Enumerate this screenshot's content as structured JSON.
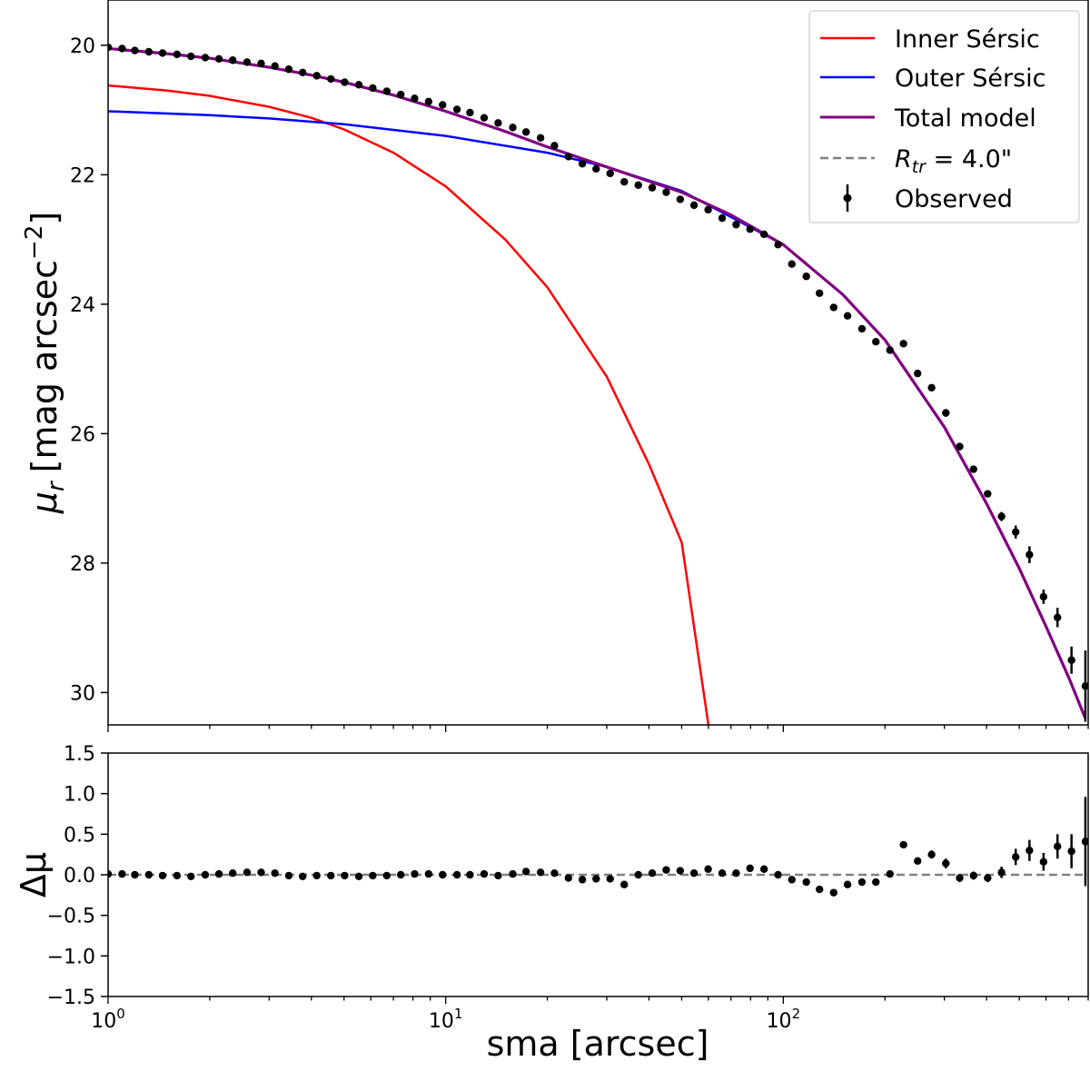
{
  "chart_data": [
    {
      "type": "line",
      "panel": "top",
      "ylabel_symbol": "μ",
      "ylabel_sub": "r",
      "ylabel_text": "[mag arcsec",
      "ylabel_exp": "−2",
      "ylabel_close": "]",
      "x_scale": "log",
      "xlim": [
        1,
        800
      ],
      "ylim": [
        30.5,
        19.3
      ],
      "y_inverted": true,
      "yticks": [
        20,
        22,
        24,
        26,
        28,
        30
      ],
      "ytick_labels": [
        "20",
        "22",
        "24",
        "26",
        "28",
        "30"
      ],
      "grid": false,
      "legend_position": "top-right",
      "legend": [
        {
          "label": "Inner Sérsic",
          "color": "#ff0000",
          "style": "solid"
        },
        {
          "label": "Outer Sérsic",
          "color": "#0000ff",
          "style": "solid"
        },
        {
          "label": "Total model",
          "color": "#800080",
          "style": "solid"
        },
        {
          "label_math": "R",
          "label_sub": "tr",
          "label_rest": " = 4.0\"",
          "color": "#808080",
          "style": "dashed"
        },
        {
          "label": "Observed",
          "color": "#000000",
          "style": "errorbar"
        }
      ],
      "observed": {
        "x": [
          1.0,
          1.1,
          1.2,
          1.32,
          1.45,
          1.6,
          1.76,
          1.94,
          2.13,
          2.34,
          2.58,
          2.84,
          3.12,
          3.43,
          3.77,
          4.15,
          4.57,
          5.02,
          5.53,
          6.08,
          6.69,
          7.36,
          8.09,
          8.9,
          9.79,
          10.8,
          11.8,
          13.0,
          14.3,
          15.8,
          17.3,
          19.1,
          21.0,
          23.1,
          25.4,
          27.9,
          30.7,
          33.8,
          37.2,
          40.9,
          45.0,
          49.5,
          54.4,
          59.9,
          65.9,
          72.5,
          79.7,
          87.7,
          96.5,
          106,
          117,
          128,
          141,
          155,
          171,
          188,
          207,
          227,
          250,
          275,
          303,
          333,
          366,
          403,
          443,
          488,
          536,
          590,
          649,
          714,
          785
        ],
        "y": [
          20.03,
          20.05,
          20.08,
          20.1,
          20.12,
          20.14,
          20.17,
          20.19,
          20.21,
          20.23,
          20.26,
          20.28,
          20.32,
          20.37,
          20.42,
          20.47,
          20.52,
          20.57,
          20.61,
          20.66,
          20.71,
          20.76,
          20.82,
          20.87,
          20.92,
          20.99,
          21.04,
          21.12,
          21.2,
          21.27,
          21.34,
          21.43,
          21.55,
          21.72,
          21.83,
          21.91,
          21.98,
          22.11,
          22.16,
          22.2,
          22.27,
          22.38,
          22.47,
          22.54,
          22.67,
          22.77,
          22.84,
          22.92,
          23.08,
          23.38,
          23.57,
          23.83,
          24.05,
          24.18,
          24.38,
          24.58,
          24.71,
          24.61,
          25.07,
          25.29,
          25.68,
          26.2,
          26.55,
          26.93,
          27.28,
          27.52,
          27.87,
          28.52,
          28.84,
          29.5,
          29.9
        ],
        "yerr": [
          0.02,
          0.02,
          0.02,
          0.02,
          0.02,
          0.02,
          0.02,
          0.02,
          0.02,
          0.02,
          0.02,
          0.02,
          0.02,
          0.02,
          0.02,
          0.02,
          0.02,
          0.02,
          0.02,
          0.02,
          0.02,
          0.02,
          0.02,
          0.02,
          0.02,
          0.02,
          0.02,
          0.02,
          0.02,
          0.02,
          0.02,
          0.02,
          0.02,
          0.02,
          0.02,
          0.02,
          0.02,
          0.02,
          0.02,
          0.02,
          0.02,
          0.02,
          0.02,
          0.02,
          0.02,
          0.02,
          0.02,
          0.02,
          0.02,
          0.02,
          0.02,
          0.02,
          0.02,
          0.02,
          0.02,
          0.02,
          0.02,
          0.02,
          0.04,
          0.05,
          0.06,
          0.05,
          0.05,
          0.05,
          0.07,
          0.1,
          0.13,
          0.11,
          0.15,
          0.21,
          0.55
        ],
        "color": "#000000"
      },
      "inner_sersic": {
        "x": [
          1.0,
          1.5,
          2.0,
          3.0,
          4.0,
          5.0,
          7.0,
          10.0,
          15.0,
          20.0,
          30.0,
          40.0,
          50.0,
          60.0
        ],
        "y": [
          20.62,
          20.7,
          20.78,
          20.95,
          21.12,
          21.3,
          21.66,
          22.18,
          23.0,
          23.74,
          25.12,
          26.47,
          27.68,
          30.5
        ],
        "color": "#ff0000"
      },
      "outer_sersic": {
        "x": [
          1.0,
          2.0,
          3.0,
          5.0,
          10.0,
          20.0,
          30.0,
          50.0,
          100.0,
          150.0,
          200.0,
          300.0,
          400.0,
          500.0,
          600.0,
          700.0,
          785.0
        ],
        "y": [
          21.02,
          21.08,
          21.13,
          21.22,
          21.4,
          21.66,
          21.88,
          22.25,
          23.08,
          23.85,
          24.55,
          25.9,
          27.08,
          28.08,
          28.98,
          29.76,
          30.4
        ],
        "color": "#0000ff"
      },
      "total_model": {
        "x": [
          1.0,
          1.5,
          2.0,
          3.0,
          4.0,
          5.0,
          7.0,
          10.0,
          15.0,
          20.0,
          30.0,
          40.0,
          50.0,
          70.0,
          100.0,
          150.0,
          200.0,
          300.0,
          400.0,
          500.0,
          600.0,
          700.0,
          785.0
        ],
        "y": [
          20.05,
          20.13,
          20.2,
          20.34,
          20.46,
          20.57,
          20.77,
          21.02,
          21.33,
          21.57,
          21.88,
          22.1,
          22.27,
          22.62,
          23.08,
          23.85,
          24.55,
          25.9,
          27.08,
          28.08,
          28.98,
          29.76,
          30.4
        ],
        "color": "#800080"
      }
    },
    {
      "type": "scatter",
      "panel": "bottom",
      "xlabel": "sma [arcsec]",
      "ylabel": "Δμ",
      "x_scale": "log",
      "xlim": [
        1,
        800
      ],
      "ylim": [
        -1.5,
        1.5
      ],
      "yticks": [
        -1.5,
        -1.0,
        -0.5,
        0.0,
        0.5,
        1.0,
        1.5
      ],
      "ytick_labels": [
        "−1.5",
        "−1.0",
        "−0.5",
        "0.0",
        "0.5",
        "1.0",
        "1.5"
      ],
      "xticks": [
        1,
        10,
        100
      ],
      "xtick_base": "10",
      "xtick_exps": [
        "0",
        "1",
        "2"
      ],
      "reference_line": {
        "y": 0.0,
        "color": "#808080",
        "style": "dashed"
      },
      "residuals": {
        "x": [
          1.0,
          1.1,
          1.2,
          1.32,
          1.45,
          1.6,
          1.76,
          1.94,
          2.13,
          2.34,
          2.58,
          2.84,
          3.12,
          3.43,
          3.77,
          4.15,
          4.57,
          5.02,
          5.53,
          6.08,
          6.69,
          7.36,
          8.09,
          8.9,
          9.79,
          10.8,
          11.8,
          13.0,
          14.3,
          15.8,
          17.3,
          19.1,
          21.0,
          23.1,
          25.4,
          27.9,
          30.7,
          33.8,
          37.2,
          40.9,
          45.0,
          49.5,
          54.4,
          59.9,
          65.9,
          72.5,
          79.7,
          87.7,
          96.5,
          106,
          117,
          128,
          141,
          155,
          171,
          188,
          207,
          227,
          250,
          275,
          303,
          333,
          366,
          403,
          443,
          488,
          536,
          590,
          649,
          714,
          785
        ],
        "y": [
          0.01,
          0.01,
          0.0,
          0.0,
          -0.01,
          -0.01,
          -0.02,
          0.0,
          0.01,
          0.02,
          0.03,
          0.03,
          0.02,
          -0.01,
          -0.02,
          -0.01,
          -0.01,
          -0.01,
          -0.02,
          -0.01,
          -0.01,
          0.0,
          0.01,
          0.01,
          0.0,
          0.0,
          0.0,
          0.01,
          -0.01,
          0.01,
          0.04,
          0.03,
          0.02,
          -0.04,
          -0.06,
          -0.05,
          -0.05,
          -0.12,
          0.0,
          0.02,
          0.06,
          0.05,
          0.02,
          0.07,
          0.02,
          0.02,
          0.08,
          0.07,
          0.0,
          -0.06,
          -0.09,
          -0.18,
          -0.22,
          -0.12,
          -0.09,
          -0.09,
          0.01,
          0.37,
          0.17,
          0.25,
          0.14,
          -0.04,
          -0.01,
          -0.04,
          0.03,
          0.22,
          0.3,
          0.16,
          0.35,
          0.29,
          0.41
        ],
        "yerr": [
          0.02,
          0.02,
          0.02,
          0.02,
          0.02,
          0.02,
          0.02,
          0.02,
          0.02,
          0.02,
          0.02,
          0.02,
          0.02,
          0.02,
          0.02,
          0.02,
          0.02,
          0.02,
          0.02,
          0.02,
          0.02,
          0.02,
          0.02,
          0.02,
          0.02,
          0.02,
          0.02,
          0.02,
          0.02,
          0.02,
          0.02,
          0.02,
          0.02,
          0.02,
          0.02,
          0.02,
          0.02,
          0.02,
          0.02,
          0.02,
          0.02,
          0.02,
          0.02,
          0.02,
          0.02,
          0.02,
          0.02,
          0.02,
          0.02,
          0.02,
          0.02,
          0.02,
          0.02,
          0.02,
          0.02,
          0.02,
          0.02,
          0.02,
          0.04,
          0.05,
          0.06,
          0.05,
          0.05,
          0.05,
          0.07,
          0.1,
          0.13,
          0.11,
          0.15,
          0.21,
          0.55
        ],
        "color": "#000000"
      }
    }
  ]
}
